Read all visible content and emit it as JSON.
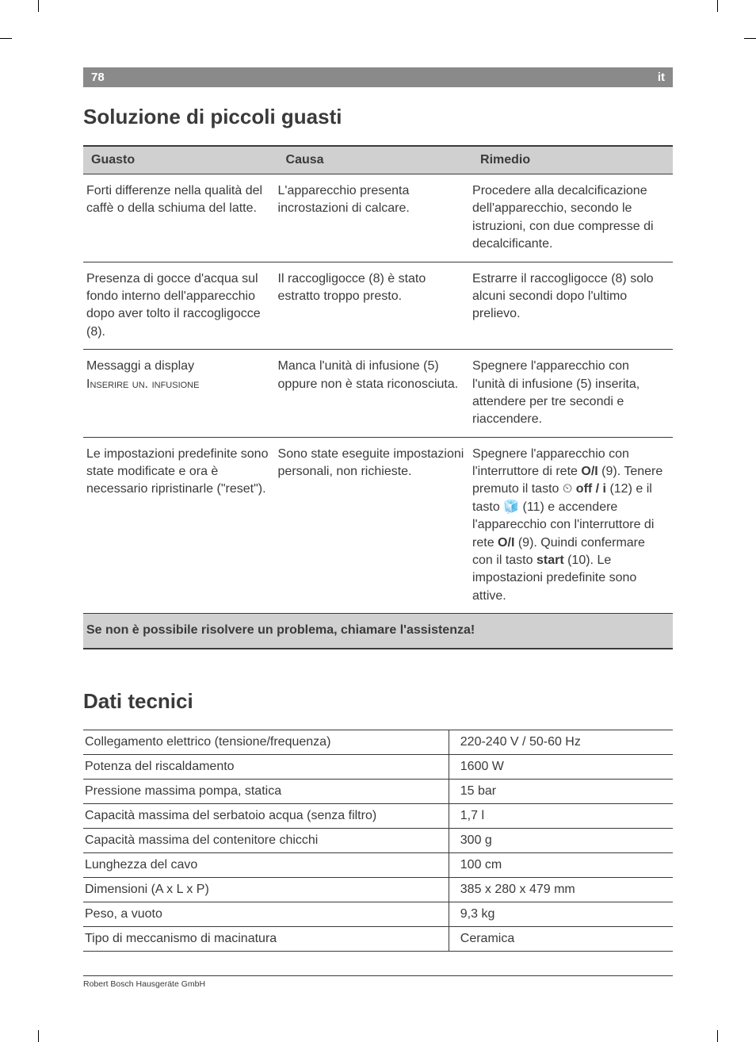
{
  "header": {
    "page": "78",
    "lang": "it"
  },
  "section1": {
    "title": "Soluzione di piccoli guasti",
    "columns": {
      "c1": "Guasto",
      "c2": "Causa",
      "c3": "Rimedio"
    },
    "rows": [
      {
        "g": "Forti differenze nella qualità del caffè o della schiuma del latte.",
        "c": "L'apparecchio presenta incrostazioni di calcare.",
        "r": "Procedere alla decalcifica­zione dell'apparecchio, secondo le istruzioni, con due compresse di decalcifi­cante."
      },
      {
        "g": "Presenza di gocce d'acqua sul fondo interno dell'apparecchio dopo aver tolto il raccogligocce (8).",
        "c": "Il raccogligocce (8) è stato estratto troppo presto.",
        "r": "Estrarre il raccogligocce (8) solo alcuni secondi dopo l'ultimo prelievo."
      },
      {
        "g_pre": "Messaggi a display",
        "g_sc": "Inserire un. infusione",
        "c": "Manca l'unità di infusione (5) oppure non è stata rico­nosciuta.",
        "r": "Spegnere l'apparecchio con l'unità di infusione (5) inseri­ta, attendere per tre secondi e riaccendere."
      },
      {
        "g": "Le impostazioni predefinite sono state modificate e ora è necessario ripristinarle (\"reset\").",
        "c": "Sono state eseguite impostazioni personali, non richieste.",
        "r_parts": {
          "p1": "Spegnere l'apparecchio con l'interruttore di rete ",
          "b1": "O/I",
          "p2": " (9). Tenere premuto il tasto ",
          "icon1": "⏲",
          "b2": " off / i",
          "p3": " (12) e il tasto ",
          "icon2": "🧊",
          "p4": " (11) e accendere l'apparec­chio con l'interruttore di rete ",
          "b3": "O/I",
          "p5": " (9). Quindi confermare con il tasto ",
          "b4": "start",
          "p6": " (10). Le impostazioni predefinite sono attive."
        }
      }
    ],
    "footer": "Se non è possibile risolvere un problema, chiamare l'assistenza!"
  },
  "section2": {
    "title": "Dati tecnici",
    "rows": [
      {
        "l": "Collegamento elettrico (tensione/frequenza)",
        "r": "220-240 V / 50-60 Hz"
      },
      {
        "l": "Potenza del riscaldamento",
        "r": "1600 W"
      },
      {
        "l": "Pressione massima pompa, statica",
        "r": "15 bar"
      },
      {
        "l": "Capacità massima del serbatoio acqua (senza filtro)",
        "r": "1,7 l"
      },
      {
        "l": "Capacità massima del contenitore chicchi",
        "r": "300 g"
      },
      {
        "l": "Lunghezza del cavo",
        "r": "100 cm"
      },
      {
        "l": "Dimensioni (A x L x P)",
        "r": "385 x 280 x 479 mm"
      },
      {
        "l": "Peso, a vuoto",
        "r": "9,3 kg"
      },
      {
        "l": "Tipo di meccanismo di macinatura",
        "r": "Ceramica"
      }
    ]
  },
  "footer": {
    "company": "Robert Bosch Hausgeräte GmbH"
  },
  "colors": {
    "header_bg": "#8a8a8a",
    "header_text": "#ffffff",
    "body_text": "#3a3a3a",
    "th_bg": "#d0d0d0",
    "border": "#3a3a3a",
    "page_bg": "#ffffff"
  },
  "fonts": {
    "title_size": 26,
    "body_size": 16,
    "header_bar_size": 15,
    "footer_size": 10.5
  }
}
